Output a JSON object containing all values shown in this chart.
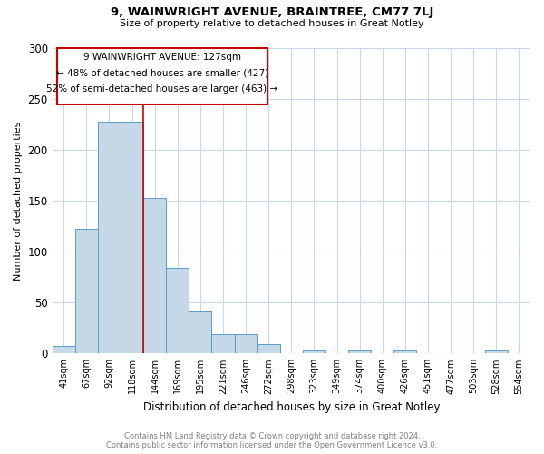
{
  "title": "9, WAINWRIGHT AVENUE, BRAINTREE, CM77 7LJ",
  "subtitle": "Size of property relative to detached houses in Great Notley",
  "xlabel": "Distribution of detached houses by size in Great Notley",
  "ylabel": "Number of detached properties",
  "footer_line1": "Contains HM Land Registry data © Crown copyright and database right 2024.",
  "footer_line2": "Contains public sector information licensed under the Open Government Licence v3.0.",
  "categories": [
    "41sqm",
    "67sqm",
    "92sqm",
    "118sqm",
    "144sqm",
    "169sqm",
    "195sqm",
    "221sqm",
    "246sqm",
    "272sqm",
    "298sqm",
    "323sqm",
    "349sqm",
    "374sqm",
    "400sqm",
    "426sqm",
    "451sqm",
    "477sqm",
    "503sqm",
    "528sqm",
    "554sqm"
  ],
  "values": [
    7,
    122,
    227,
    227,
    153,
    84,
    41,
    19,
    19,
    9,
    0,
    3,
    0,
    3,
    0,
    3,
    0,
    0,
    0,
    3,
    0
  ],
  "bar_color": "#c5d8e8",
  "bar_edge_color": "#5a9dc8",
  "annotation_line1": "9 WAINWRIGHT AVENUE: 127sqm",
  "annotation_line2": "← 48% of detached houses are smaller (427)",
  "annotation_line3": "52% of semi-detached houses are larger (463) →",
  "vline_color": "#cc0000",
  "vline_x": 3.5,
  "box_color": "#cc0000",
  "ylim": [
    0,
    300
  ],
  "yticks": [
    0,
    50,
    100,
    150,
    200,
    250,
    300
  ],
  "background_color": "#ffffff",
  "grid_color": "#c8d8e8"
}
